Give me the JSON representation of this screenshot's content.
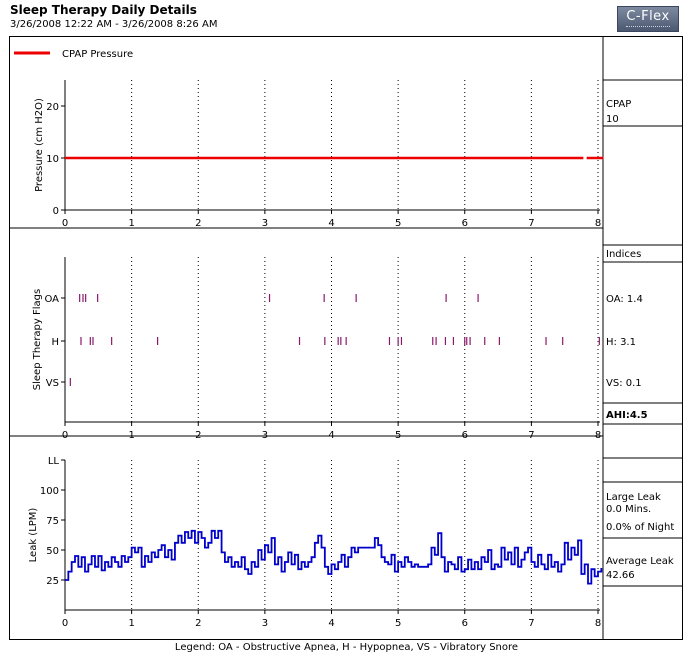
{
  "header": {
    "title": "Sleep Therapy Daily Details",
    "subtitle": "3/26/2008 12:22 AM - 3/26/2008 8:26 AM",
    "logo_text": "C-Flex"
  },
  "legend_footer": "Legend: OA - Obstructive Apnea, H - Hypopnea, VS - Vibratory Snore",
  "colors": {
    "pressure": "#ee0000",
    "flags": "#8b1a6b",
    "leak": "#0000cc",
    "grid": "#000000"
  },
  "chart_data": [
    {
      "type": "line",
      "legend_label": "CPAP Pressure",
      "ylabel": "Pressure (cm H2O)",
      "xlim": [
        0,
        8
      ],
      "x_ticks": [
        "0",
        "1",
        "2",
        "3",
        "4",
        "5",
        "6",
        "7",
        "8"
      ],
      "ylim": [
        0,
        25
      ],
      "y_ticks": [
        0,
        10,
        20
      ],
      "grid": "vertical dotted",
      "series": [
        {
          "name": "CPAP Pressure",
          "segments": [
            [
              [
                0,
                10
              ],
              [
                7.78,
                10
              ]
            ],
            [
              [
                7.83,
                10
              ],
              [
                8.08,
                10
              ]
            ]
          ]
        }
      ],
      "side_panel": {
        "label": "CPAP",
        "value": "10"
      }
    },
    {
      "type": "scatter",
      "ylabel": "Sleep Therapy Flags",
      "xlim": [
        0,
        8
      ],
      "x_ticks": [
        "0",
        "1",
        "2",
        "3",
        "4",
        "5",
        "6",
        "7",
        "8"
      ],
      "categories": [
        "OA",
        "H",
        "VS"
      ],
      "events": {
        "OA": [
          0.22,
          0.27,
          0.31,
          0.49,
          3.07,
          3.89,
          4.37,
          5.72,
          6.2
        ],
        "H": [
          0.24,
          0.38,
          0.42,
          0.7,
          1.39,
          3.52,
          3.9,
          4.1,
          4.14,
          4.22,
          4.87,
          5.0,
          5.05,
          5.52,
          5.57,
          5.71,
          5.83,
          6.0,
          6.03,
          6.08,
          6.3,
          6.52,
          7.22,
          7.47,
          8.02
        ],
        "VS": [
          0.08
        ]
      },
      "grid": "vertical dotted",
      "side_panel": {
        "title": "Indices",
        "oa": "OA: 1.4",
        "h": "H: 3.1",
        "vs": "VS: 0.1",
        "ahi": "AHI:4.5"
      }
    },
    {
      "type": "line",
      "ylabel": "Leak (LPM)",
      "xlim": [
        0,
        8
      ],
      "x_ticks": [
        "0",
        "1",
        "2",
        "3",
        "4",
        "5",
        "6",
        "7",
        "8"
      ],
      "ylim": [
        0,
        125
      ],
      "y_ticks": [
        "25",
        "50",
        "75",
        "100",
        "LL"
      ],
      "grid": "vertical dotted",
      "series": [
        {
          "name": "Leak",
          "x": [
            0,
            0.05,
            0.08,
            0.1,
            0.15,
            0.2,
            0.25,
            0.3,
            0.35,
            0.4,
            0.45,
            0.5,
            0.55,
            0.6,
            0.65,
            0.7,
            0.75,
            0.8,
            0.85,
            0.9,
            0.95,
            1.0,
            1.05,
            1.1,
            1.15,
            1.2,
            1.25,
            1.3,
            1.35,
            1.4,
            1.45,
            1.5,
            1.55,
            1.6,
            1.65,
            1.7,
            1.75,
            1.8,
            1.85,
            1.9,
            1.95,
            2.0,
            2.05,
            2.1,
            2.15,
            2.2,
            2.25,
            2.3,
            2.35,
            2.4,
            2.45,
            2.5,
            2.55,
            2.6,
            2.65,
            2.7,
            2.75,
            2.8,
            2.85,
            2.9,
            2.95,
            3.0,
            3.05,
            3.1,
            3.15,
            3.2,
            3.25,
            3.3,
            3.35,
            3.4,
            3.45,
            3.5,
            3.55,
            3.6,
            3.65,
            3.7,
            3.75,
            3.8,
            3.85,
            3.9,
            3.95,
            4.0,
            4.05,
            4.1,
            4.15,
            4.2,
            4.25,
            4.3,
            4.35,
            4.4,
            4.45,
            4.5,
            4.55,
            4.6,
            4.65,
            4.7,
            4.75,
            4.8,
            4.85,
            4.9,
            4.95,
            5.0,
            5.05,
            5.1,
            5.15,
            5.2,
            5.25,
            5.3,
            5.35,
            5.4,
            5.45,
            5.5,
            5.55,
            5.6,
            5.65,
            5.7,
            5.75,
            5.8,
            5.85,
            5.9,
            5.95,
            6.0,
            6.05,
            6.1,
            6.15,
            6.2,
            6.25,
            6.3,
            6.35,
            6.4,
            6.45,
            6.5,
            6.55,
            6.6,
            6.65,
            6.7,
            6.75,
            6.8,
            6.85,
            6.9,
            6.95,
            7.0,
            7.05,
            7.1,
            7.15,
            7.2,
            7.25,
            7.3,
            7.35,
            7.4,
            7.45,
            7.5,
            7.55,
            7.6,
            7.65,
            7.7,
            7.75,
            7.8,
            7.85,
            7.9,
            7.95,
            8.0,
            8.05
          ],
          "values": [
            25,
            32,
            32,
            40,
            45,
            36,
            44,
            32,
            38,
            45,
            36,
            45,
            33,
            40,
            36,
            44,
            40,
            36,
            45,
            40,
            44,
            52,
            48,
            52,
            36,
            45,
            40,
            48,
            44,
            50,
            54,
            44,
            50,
            42,
            56,
            62,
            56,
            65,
            60,
            66,
            56,
            65,
            60,
            52,
            56,
            66,
            60,
            66,
            48,
            40,
            44,
            36,
            40,
            36,
            44,
            34,
            30,
            40,
            36,
            50,
            42,
            54,
            48,
            60,
            38,
            44,
            32,
            40,
            48,
            38,
            46,
            34,
            40,
            36,
            40,
            44,
            56,
            62,
            52,
            36,
            30,
            38,
            34,
            40,
            46,
            36,
            44,
            52,
            48,
            52,
            52,
            52,
            52,
            52,
            60,
            54,
            44,
            40,
            38,
            46,
            32,
            40,
            36,
            44,
            40,
            36,
            38,
            36,
            36,
            36,
            38,
            52,
            46,
            64,
            44,
            32,
            40,
            38,
            34,
            44,
            32,
            34,
            42,
            34,
            40,
            34,
            44,
            40,
            50,
            34,
            38,
            36,
            52,
            42,
            48,
            38,
            52,
            36,
            42,
            48,
            52,
            40,
            36,
            46,
            38,
            34,
            46,
            36,
            40,
            32,
            38,
            56,
            42,
            52,
            46,
            58,
            30,
            38,
            22,
            34,
            28,
            32,
            35
          ],
          "label_pts_note": "approximate"
        }
      ],
      "side_panel": {
        "large_leak_title": "Large Leak",
        "large_leak_mins": "0.0 Mins.",
        "large_leak_pct": "0.0% of Night",
        "avg_leak_title": "Average Leak",
        "avg_leak_value": "42.66"
      }
    }
  ]
}
